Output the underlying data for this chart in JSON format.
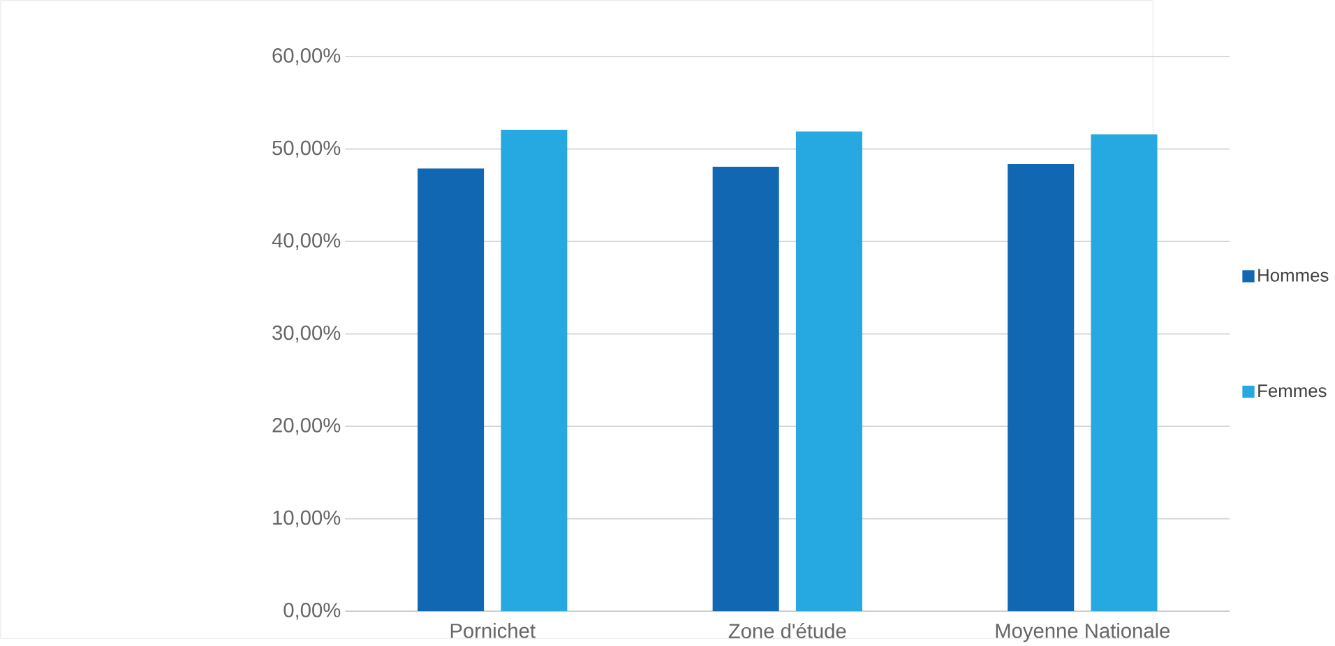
{
  "chart_data": {
    "type": "bar",
    "categories": [
      "Pornichet",
      "Zone d'étude",
      "Moyenne Nationale"
    ],
    "series": [
      {
        "name": "Hommes",
        "color": "#1167b1",
        "values": [
          47.9,
          48.1,
          48.4
        ]
      },
      {
        "name": "Femmes",
        "color": "#26a8e0",
        "values": [
          52.1,
          51.9,
          51.6
        ]
      }
    ],
    "ylim": [
      0,
      60
    ],
    "yticks": [
      {
        "value": 0,
        "label": "0,00%"
      },
      {
        "value": 10,
        "label": "10,00%"
      },
      {
        "value": 20,
        "label": "20,00%"
      },
      {
        "value": 30,
        "label": "30,00%"
      },
      {
        "value": 40,
        "label": "40,00%"
      },
      {
        "value": 50,
        "label": "50,00%"
      },
      {
        "value": 60,
        "label": "60,00%"
      }
    ],
    "grid": "y",
    "legend": "right"
  }
}
